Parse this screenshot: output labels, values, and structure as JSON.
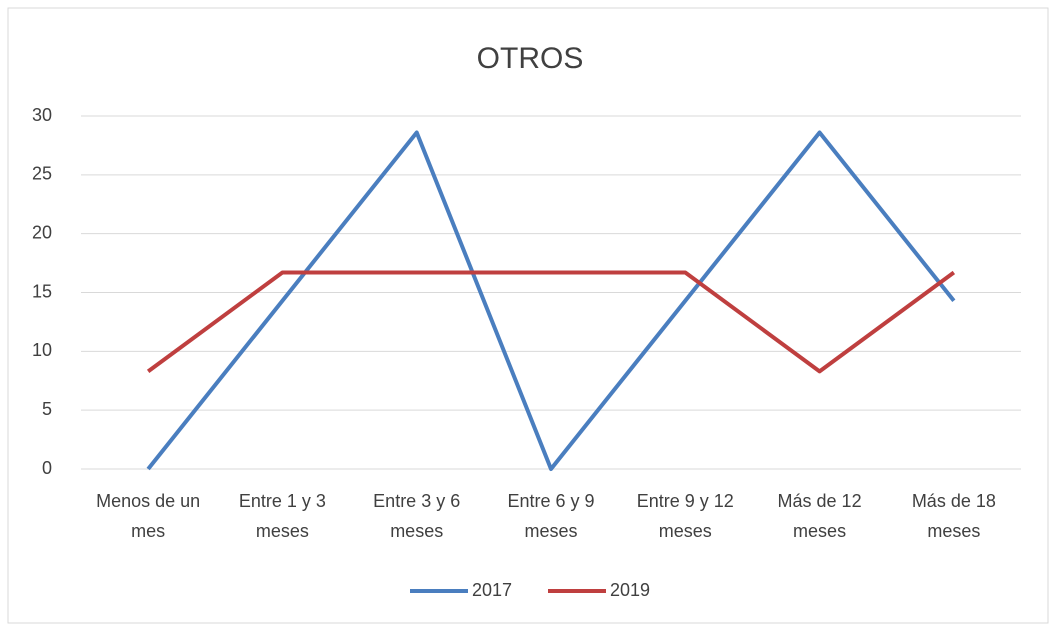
{
  "chart_data": {
    "type": "line",
    "title": "OTROS",
    "categories": [
      "Menos de un mes",
      "Entre 1 y 3 meses",
      "Entre 3 y 6 meses",
      "Entre 6 y 9 meses",
      "Entre 9 y 12 meses",
      "Más de 12 meses",
      "Más de 18 meses"
    ],
    "series": [
      {
        "name": "2017",
        "color": "#4a7ebf",
        "values": [
          0,
          14.3,
          28.6,
          0,
          14.3,
          28.6,
          14.3
        ]
      },
      {
        "name": "2019",
        "color": "#bf3f3f",
        "values": [
          8.3,
          16.7,
          16.7,
          16.7,
          16.7,
          8.3,
          16.7
        ]
      }
    ],
    "ylim": [
      0,
      30
    ],
    "yticks": [
      0,
      5,
      10,
      15,
      20,
      25,
      30
    ],
    "grid": true,
    "legend": "bottom"
  }
}
